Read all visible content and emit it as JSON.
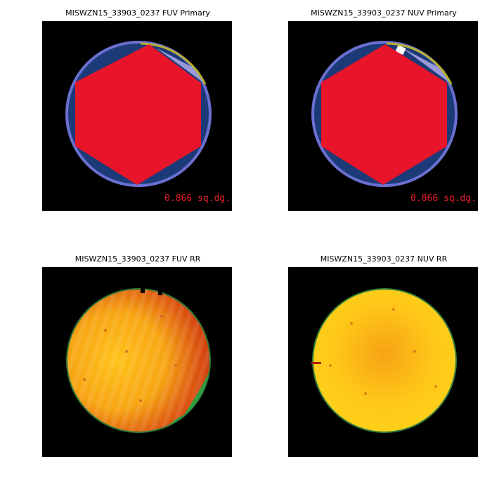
{
  "panels": [
    {
      "title": "MISWZN15_33903_0237 FUV Primary",
      "area_label": "0.866 sq.dg."
    },
    {
      "title": "MISWZN15_33903_0237 NUV Primary",
      "area_label": "0.866 sq.dg."
    },
    {
      "title": "MISWZN15_33903_0237 FUV RR"
    },
    {
      "title": "MISWZN15_33903_0237 NUV RR"
    }
  ]
}
